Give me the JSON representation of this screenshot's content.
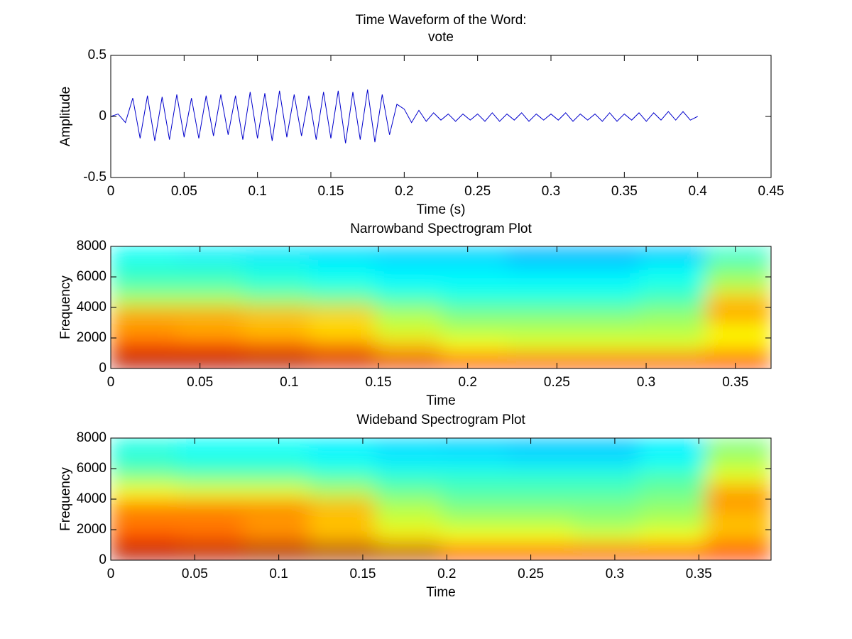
{
  "chart_data": [
    {
      "type": "line",
      "title": [
        "Time Waveform of the Word:",
        "vote"
      ],
      "xlabel": "Time (s)",
      "ylabel": "Amplitude",
      "x": [
        0,
        0.005,
        0.01,
        0.015,
        0.02,
        0.025,
        0.03,
        0.035,
        0.04,
        0.045,
        0.05,
        0.055,
        0.06,
        0.065,
        0.07,
        0.075,
        0.08,
        0.085,
        0.09,
        0.095,
        0.1,
        0.105,
        0.11,
        0.115,
        0.12,
        0.125,
        0.13,
        0.135,
        0.14,
        0.145,
        0.15,
        0.155,
        0.16,
        0.165,
        0.17,
        0.175,
        0.18,
        0.185,
        0.19,
        0.195,
        0.2,
        0.205,
        0.21,
        0.215,
        0.22,
        0.225,
        0.23,
        0.235,
        0.24,
        0.245,
        0.25,
        0.255,
        0.26,
        0.265,
        0.27,
        0.275,
        0.28,
        0.285,
        0.29,
        0.295,
        0.3,
        0.305,
        0.31,
        0.315,
        0.32,
        0.325,
        0.33,
        0.335,
        0.34,
        0.345,
        0.35,
        0.355,
        0.36,
        0.365,
        0.37,
        0.375,
        0.38,
        0.385,
        0.39,
        0.395,
        0.4
      ],
      "values": [
        0,
        0.02,
        -0.05,
        0.15,
        -0.18,
        0.17,
        -0.2,
        0.16,
        -0.19,
        0.18,
        -0.17,
        0.15,
        -0.18,
        0.17,
        -0.16,
        0.18,
        -0.15,
        0.17,
        -0.19,
        0.2,
        -0.18,
        0.19,
        -0.2,
        0.21,
        -0.17,
        0.18,
        -0.16,
        0.17,
        -0.19,
        0.2,
        -0.18,
        0.21,
        -0.22,
        0.2,
        -0.19,
        0.22,
        -0.21,
        0.18,
        -0.15,
        0.1,
        0.06,
        -0.05,
        0.05,
        -0.04,
        0.03,
        -0.03,
        0.02,
        -0.04,
        0.02,
        -0.03,
        0.02,
        -0.04,
        0.03,
        -0.04,
        0.02,
        -0.03,
        0.03,
        -0.04,
        0.02,
        -0.03,
        0.02,
        -0.03,
        0.03,
        -0.04,
        0.02,
        -0.03,
        0.02,
        -0.04,
        0.03,
        -0.04,
        0.02,
        -0.03,
        0.03,
        -0.04,
        0.03,
        -0.03,
        0.04,
        -0.03,
        0.04,
        -0.03,
        0
      ],
      "color": "#0000cc",
      "xlim": [
        0,
        0.45
      ],
      "ylim": [
        -0.5,
        0.5
      ],
      "xticks": [
        0,
        0.05,
        0.1,
        0.15,
        0.2,
        0.25,
        0.3,
        0.35,
        0.4,
        0.45
      ],
      "yticks": [
        -0.5,
        0,
        0.5
      ]
    },
    {
      "type": "heatmap",
      "title": "Narrowband Spectrogram Plot",
      "xlabel": "Time",
      "ylabel": "Frequency",
      "xbins": [
        0,
        0.037,
        0.074,
        0.111,
        0.148,
        0.185,
        0.222,
        0.259,
        0.296,
        0.333,
        0.37
      ],
      "ybins": [
        0,
        1000,
        2000,
        3000,
        4000,
        5000,
        6000,
        7000,
        8000
      ],
      "z": [
        [
          0.95,
          0.95,
          0.95,
          0.92,
          0.9,
          0.85,
          0.85,
          0.85,
          0.85,
          0.85
        ],
        [
          0.8,
          0.8,
          0.78,
          0.75,
          0.68,
          0.62,
          0.6,
          0.6,
          0.6,
          0.65
        ],
        [
          0.72,
          0.7,
          0.68,
          0.65,
          0.58,
          0.55,
          0.55,
          0.55,
          0.55,
          0.62
        ],
        [
          0.72,
          0.72,
          0.7,
          0.68,
          0.55,
          0.5,
          0.5,
          0.5,
          0.52,
          0.72
        ],
        [
          0.55,
          0.55,
          0.52,
          0.5,
          0.45,
          0.42,
          0.42,
          0.42,
          0.45,
          0.68
        ],
        [
          0.45,
          0.45,
          0.42,
          0.4,
          0.38,
          0.38,
          0.38,
          0.38,
          0.4,
          0.55
        ],
        [
          0.42,
          0.42,
          0.4,
          0.38,
          0.36,
          0.36,
          0.35,
          0.35,
          0.38,
          0.5
        ],
        [
          0.38,
          0.36,
          0.35,
          0.34,
          0.33,
          0.33,
          0.3,
          0.3,
          0.32,
          0.42
        ]
      ],
      "colormap": "jet",
      "clim": [
        0,
        1
      ],
      "xlim": [
        0,
        0.37
      ],
      "ylim": [
        0,
        8000
      ],
      "xticks": [
        0,
        0.05,
        0.1,
        0.15,
        0.2,
        0.25,
        0.3,
        0.35
      ],
      "yticks": [
        0,
        2000,
        4000,
        6000,
        8000
      ]
    },
    {
      "type": "heatmap",
      "title": "Wideband Spectrogram Plot",
      "xlabel": "Time",
      "ylabel": "Frequency",
      "xbins": [
        0,
        0.0393,
        0.0786,
        0.1179,
        0.1572,
        0.1965,
        0.2358,
        0.2751,
        0.3144,
        0.3537,
        0.393
      ],
      "ybins": [
        0,
        1000,
        2000,
        3000,
        4000,
        5000,
        6000,
        7000,
        8000
      ],
      "z": [
        [
          0.95,
          0.95,
          0.97,
          0.97,
          0.95,
          0.85,
          0.85,
          0.85,
          0.85,
          0.85
        ],
        [
          0.8,
          0.78,
          0.75,
          0.7,
          0.65,
          0.62,
          0.62,
          0.6,
          0.62,
          0.7
        ],
        [
          0.75,
          0.75,
          0.72,
          0.68,
          0.58,
          0.55,
          0.55,
          0.52,
          0.55,
          0.68
        ],
        [
          0.75,
          0.75,
          0.75,
          0.7,
          0.55,
          0.5,
          0.5,
          0.5,
          0.52,
          0.72
        ],
        [
          0.62,
          0.6,
          0.6,
          0.55,
          0.48,
          0.45,
          0.45,
          0.45,
          0.48,
          0.72
        ],
        [
          0.5,
          0.48,
          0.48,
          0.45,
          0.42,
          0.42,
          0.42,
          0.42,
          0.45,
          0.6
        ],
        [
          0.42,
          0.4,
          0.4,
          0.38,
          0.36,
          0.36,
          0.35,
          0.35,
          0.38,
          0.55
        ],
        [
          0.4,
          0.38,
          0.38,
          0.36,
          0.34,
          0.33,
          0.32,
          0.32,
          0.36,
          0.5
        ]
      ],
      "colormap": "jet",
      "clim": [
        0,
        1
      ],
      "xlim": [
        0,
        0.393
      ],
      "ylim": [
        0,
        8000
      ],
      "xticks": [
        0,
        0.05,
        0.1,
        0.15,
        0.2,
        0.25,
        0.3,
        0.35
      ],
      "yticks": [
        0,
        2000,
        4000,
        6000,
        8000
      ]
    }
  ]
}
